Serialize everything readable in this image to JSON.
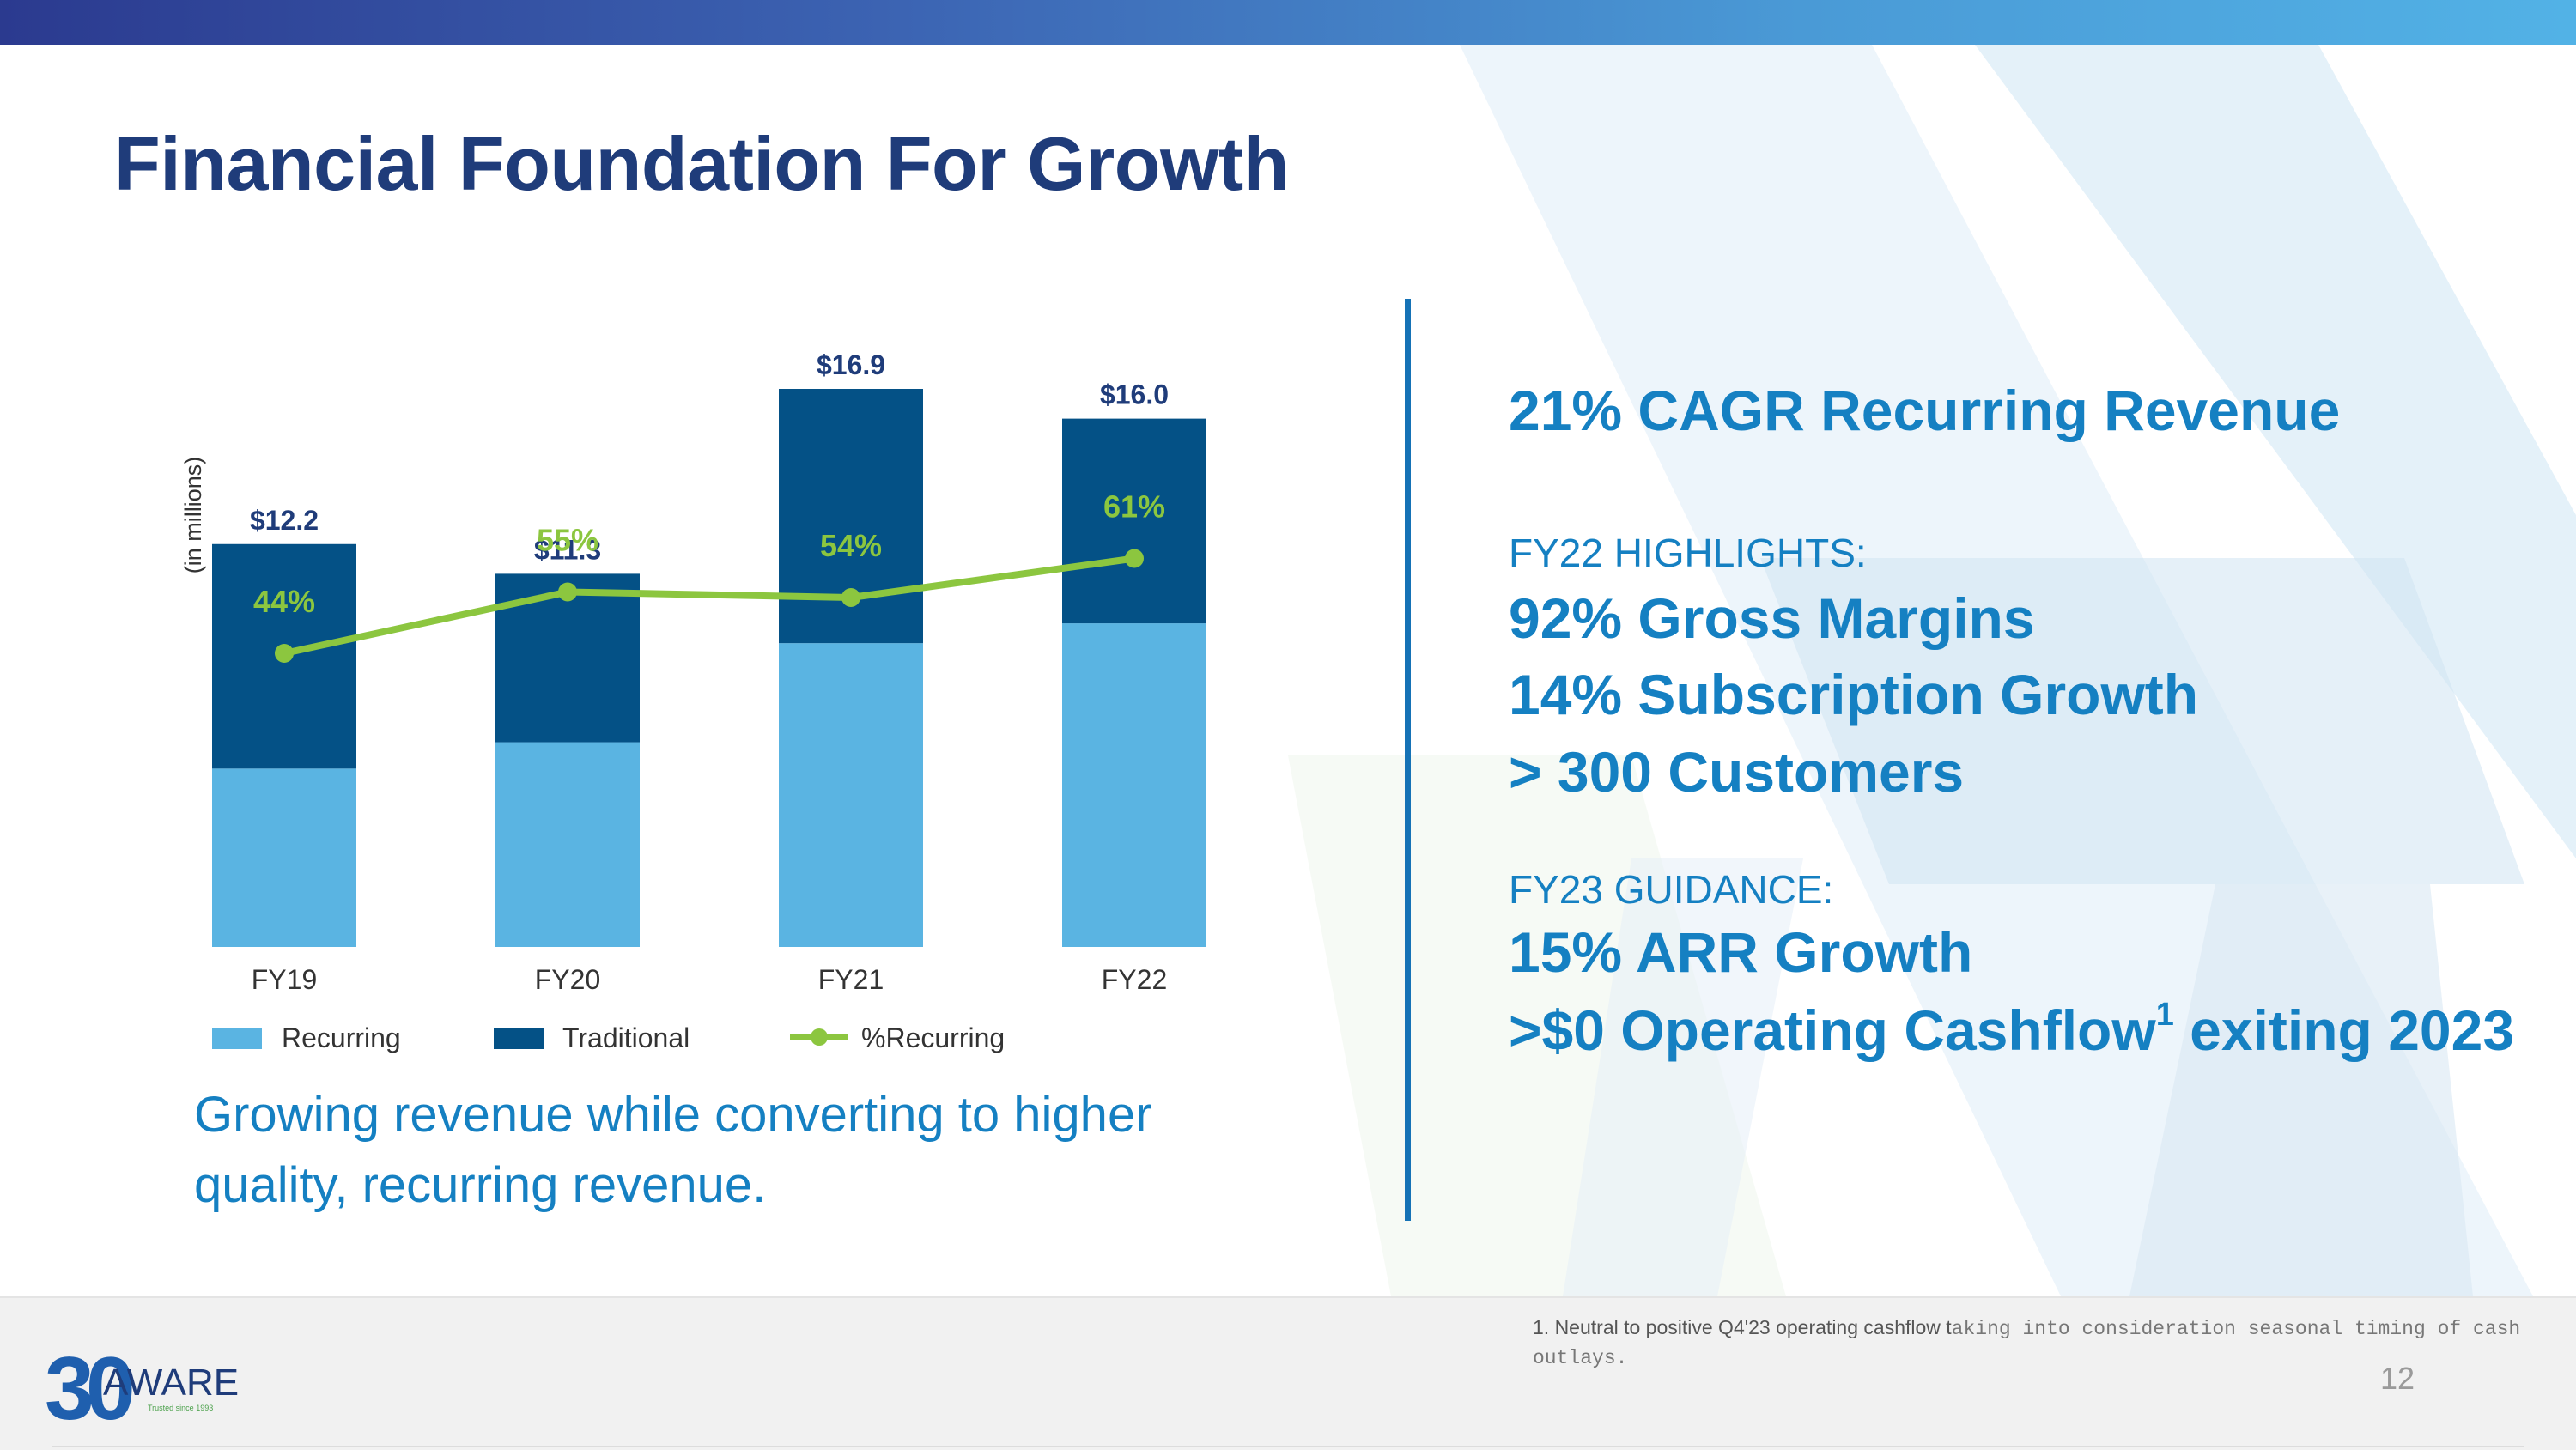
{
  "slide": {
    "title": "Financial Foundation For Growth",
    "subtitle_line1": "Growing revenue while converting to higher",
    "subtitle_line2": "quality, recurring revenue.",
    "page_number": "12"
  },
  "colors": {
    "recurring": "#5ab4e2",
    "traditional": "#045186",
    "pct_line": "#8cc63f",
    "accent": "#1580c2",
    "title": "#1f3c7a"
  },
  "chart_data": {
    "type": "bar",
    "stacked": true,
    "ylabel": "(in millions)",
    "categories": [
      "FY19",
      "FY20",
      "FY21",
      "FY22"
    ],
    "totals": [
      12.2,
      11.3,
      16.9,
      16.0
    ],
    "total_labels": [
      "$12.2",
      "$11.3",
      "$16.9",
      "$16.0"
    ],
    "series": [
      {
        "name": "Recurring",
        "values": [
          5.4,
          6.2,
          9.2,
          9.8
        ]
      },
      {
        "name": "Traditional",
        "values": [
          6.8,
          5.1,
          7.7,
          6.2
        ]
      }
    ],
    "line_series": {
      "name": "%Recurring",
      "values": [
        44,
        55,
        54,
        61
      ],
      "labels": [
        "44%",
        "55%",
        "54%",
        "61%"
      ]
    },
    "legend": [
      "Recurring",
      "Traditional",
      "%Recurring"
    ],
    "legend_position": "bottom",
    "ylim": [
      0,
      16.9
    ]
  },
  "highlights": {
    "cagr": "21% CAGR Recurring Revenue",
    "fy22_label": "FY22 HIGHLIGHTS:",
    "gross_margins": "92% Gross Margins",
    "subscription_growth": "14% Subscription Growth",
    "customers": "> 300 Customers",
    "fy23_label": "FY23 GUIDANCE:",
    "arr_growth": "15% ARR Growth",
    "cashflow_pre": ">$0 Operating Cashflow",
    "cashflow_sup": "1",
    "cashflow_post": " exiting 2023"
  },
  "footnote": {
    "text_a": "1. Neutral to positive Q4'23 operating cashflow t",
    "text_b": "aking into consideration seasonal timing of cash outlays."
  },
  "logo": {
    "digits": "30",
    "name": "AWARE",
    "tagline": "Trusted since 1993"
  }
}
